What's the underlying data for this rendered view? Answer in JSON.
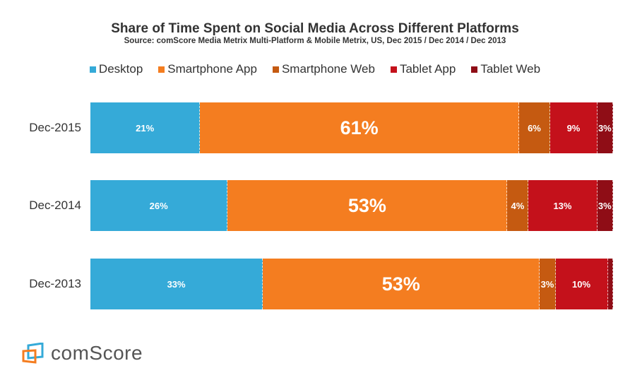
{
  "chart_data": {
    "type": "bar",
    "orientation": "horizontal",
    "stacked": true,
    "title": "Share of Time Spent on Social Media Across Different Platforms",
    "subtitle": "Source: comScore Media Metrix Multi-Platform & Mobile Metrix, US, Dec 2015 / Dec 2014 / Dec 2013",
    "legend_position": "top",
    "grid": false,
    "categories": [
      "Dec-2015",
      "Dec-2014",
      "Dec-2013"
    ],
    "series": [
      {
        "name": "Desktop",
        "color": "#35aad8",
        "values": [
          21,
          26,
          33
        ],
        "labels": [
          "21%",
          "26%",
          "33%"
        ]
      },
      {
        "name": "Smartphone App",
        "color": "#f47d20",
        "values": [
          61,
          53,
          53
        ],
        "labels": [
          "61%",
          "53%",
          "53%"
        ]
      },
      {
        "name": "Smartphone Web",
        "color": "#c55a11",
        "values": [
          6,
          4,
          3
        ],
        "labels": [
          "6%",
          "4%",
          "3%"
        ]
      },
      {
        "name": "Tablet App",
        "color": "#c4111b",
        "values": [
          9,
          13,
          10
        ],
        "labels": [
          "9%",
          "13%",
          "10%"
        ]
      },
      {
        "name": "Tablet Web",
        "color": "#8f0d16",
        "values": [
          3,
          3,
          1
        ],
        "labels": [
          "3%",
          "3%",
          ""
        ]
      }
    ]
  },
  "logo": {
    "text": "comScore"
  }
}
